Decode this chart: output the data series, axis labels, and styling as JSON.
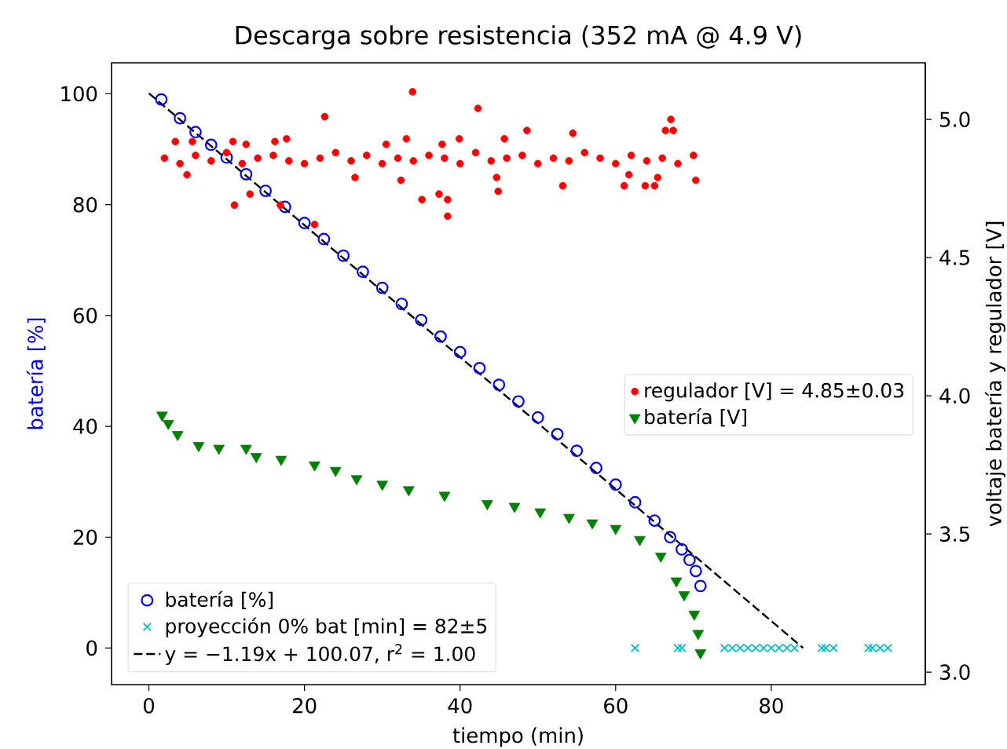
{
  "chart_data": {
    "type": "scatter",
    "title": "Descarga sobre resistencia (352 mA @ 4.9 V)",
    "xlabel": "tiempo (min)",
    "ylabel": "batería [%]",
    "y2label": "voltaje batería y regulador [V]",
    "xlim": [
      -4.8,
      99.8
    ],
    "ylim": [
      -6.6,
      105.6
    ],
    "y2lim": [
      2.955,
      5.205
    ],
    "xticks": [
      0,
      20,
      40,
      60,
      80
    ],
    "yticks": [
      0,
      20,
      40,
      60,
      80,
      100
    ],
    "y2ticks": [
      {
        "value": 3.0,
        "label": "3.0"
      },
      {
        "value": 3.5,
        "label": "3.5"
      },
      {
        "value": 4.0,
        "label": "4.0"
      },
      {
        "value": 4.5,
        "label": "4.5"
      },
      {
        "value": 5.0,
        "label": "5.0"
      }
    ],
    "legend": "bottom left",
    "series": [
      {
        "name": "batería [%]",
        "marker": "circle",
        "color": "#0000ff",
        "x": [
          1.6,
          4,
          6,
          8,
          10,
          12.5,
          15,
          17.5,
          20,
          22.5,
          25,
          27.5,
          30,
          32.5,
          35,
          37.5,
          40,
          42.5,
          45,
          47.5,
          50,
          52.5,
          55,
          57.5,
          60,
          62.5,
          65,
          67,
          68.5,
          69.5,
          70.3,
          70.9
        ],
        "values": [
          99.0,
          95.6,
          93.1,
          90.8,
          88.5,
          85.5,
          82.5,
          79.6,
          76.7,
          73.8,
          70.8,
          67.9,
          65.0,
          62.1,
          59.2,
          56.2,
          53.4,
          50.5,
          47.5,
          44.5,
          41.6,
          38.6,
          35.6,
          32.5,
          29.5,
          26.3,
          23.0,
          20.0,
          17.8,
          15.9,
          13.9,
          11.2
        ]
      },
      {
        "name": "proyección 0% bat [min] = 82±5",
        "marker": "cross",
        "color": "#00bfbf",
        "x": [
          62.5,
          68,
          68.5,
          74,
          75,
          76,
          77,
          78,
          79,
          80,
          81,
          82,
          83,
          86.5,
          87,
          88,
          92.5,
          93,
          94,
          95
        ],
        "values": [
          0,
          0,
          0,
          0,
          0,
          0,
          0,
          0,
          0,
          0,
          0,
          0,
          0,
          0,
          0,
          0,
          0,
          0,
          0,
          0
        ]
      },
      {
        "name": "y = −1.19x + 100.07,  r$^{2}$ = 1.00",
        "type": "line",
        "marker": "none",
        "line_style": "dashed",
        "color": "#000000",
        "x": [
          0,
          84.1
        ],
        "values": [
          100.1,
          0
        ]
      },
      {
        "name": "regulador [V] = 4.85±0.03",
        "marker": "circle",
        "axis": "y2",
        "color": "#ff0000",
        "x": [
          2,
          4,
          6,
          8,
          10,
          12,
          14,
          16,
          18,
          20,
          22,
          24,
          26,
          28,
          30,
          32,
          34,
          36,
          38,
          40,
          42,
          44,
          46,
          48,
          50,
          52,
          54,
          56,
          58,
          60,
          62,
          64,
          66,
          68,
          70,
          33.9,
          22.6,
          42.3,
          67.1,
          66.4,
          67.4,
          48.6,
          54.5,
          3.4,
          5.6,
          10.8,
          12.5,
          16.2,
          17.7,
          30.5,
          33.1,
          37.7,
          39.9,
          45.7,
          11.0,
          13.0,
          16.9,
          21.3,
          35.1,
          37.3,
          38.4,
          38.4,
          32.4,
          26.5,
          44.9,
          44.7,
          53.2,
          61.1,
          63.8,
          65.0,
          70.3,
          65.4,
          61.7,
          4.9
        ],
        "values": [
          4.86,
          4.84,
          4.87,
          4.85,
          4.88,
          4.84,
          4.86,
          4.87,
          4.85,
          4.84,
          4.86,
          4.88,
          4.85,
          4.87,
          4.84,
          4.86,
          4.85,
          4.87,
          4.86,
          4.84,
          4.88,
          4.85,
          4.86,
          4.87,
          4.84,
          4.86,
          4.85,
          4.88,
          4.86,
          4.84,
          4.87,
          4.85,
          4.86,
          4.84,
          4.87,
          5.1,
          5.01,
          5.04,
          5.0,
          4.96,
          4.96,
          4.96,
          4.95,
          4.92,
          4.92,
          4.92,
          4.91,
          4.92,
          4.93,
          4.91,
          4.93,
          4.91,
          4.93,
          4.93,
          4.69,
          4.73,
          4.69,
          4.62,
          4.71,
          4.73,
          4.71,
          4.65,
          4.78,
          4.79,
          4.74,
          4.79,
          4.76,
          4.76,
          4.76,
          4.76,
          4.78,
          4.79,
          4.8,
          4.8
        ]
      },
      {
        "name": "batería [V]",
        "marker": "triangle",
        "axis": "y2",
        "color": "#008000",
        "x": [
          1.7,
          2.5,
          3.7,
          6.4,
          9,
          12.5,
          13.8,
          17,
          21.3,
          24,
          26.7,
          30,
          33.4,
          38,
          43.5,
          47,
          50.3,
          54,
          57,
          60,
          63.1,
          65.8,
          67.8,
          68.8,
          70.1,
          70.6,
          70.9
        ],
        "values": [
          3.93,
          3.9,
          3.86,
          3.82,
          3.81,
          3.81,
          3.78,
          3.77,
          3.75,
          3.73,
          3.7,
          3.68,
          3.66,
          3.64,
          3.61,
          3.6,
          3.58,
          3.56,
          3.54,
          3.52,
          3.48,
          3.42,
          3.33,
          3.28,
          3.21,
          3.14,
          3.07
        ]
      }
    ]
  }
}
